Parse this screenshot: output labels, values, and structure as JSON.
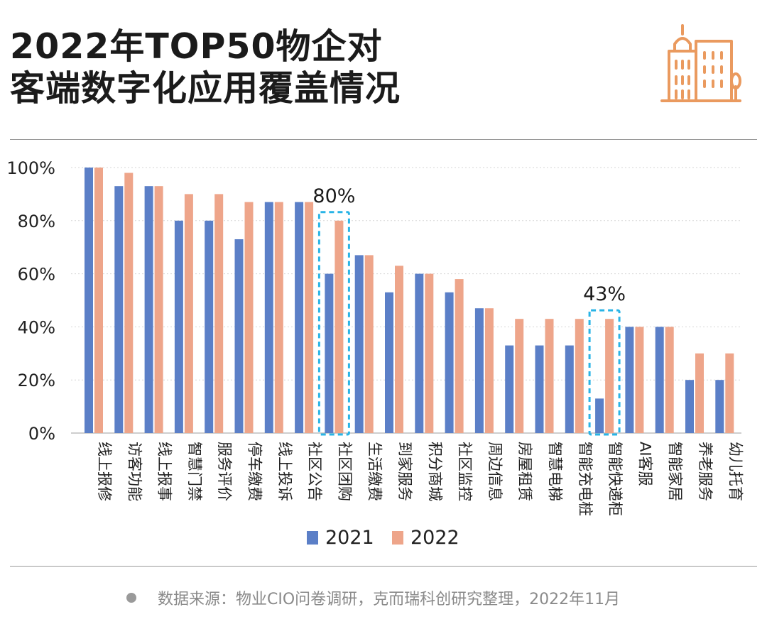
{
  "header": {
    "title_line1": "2022年TOP50物企对",
    "title_line2": "客端数字化应用覆盖情况",
    "logo_icon": "city-buildings-icon"
  },
  "footer": {
    "source": "数据来源：物业CIO问卷调研，克而瑞科创研究整理，2022年11月"
  },
  "chart_data": {
    "type": "bar",
    "title": "2022年TOP50物企对客端数字化应用覆盖情况",
    "xlabel": "",
    "ylabel": "",
    "ylim": [
      0,
      100
    ],
    "yticks": [
      "0%",
      "20%",
      "40%",
      "60%",
      "80%",
      "100%"
    ],
    "grid": true,
    "legend": "bottom",
    "categories": [
      "线上报修",
      "访客功能",
      "线上报事",
      "智慧门禁",
      "服务评价",
      "停车缴费",
      "线上投诉",
      "社区公告",
      "社区团购",
      "生活缴费",
      "到家服务",
      "积分商城",
      "社区监控",
      "周边信息",
      "房屋租赁",
      "智慧电梯",
      "智能充电桩",
      "智能快递柜",
      "AI客服",
      "智能家居",
      "养老服务",
      "幼儿托育"
    ],
    "series": [
      {
        "name": "2021",
        "color": "#5b7fc7",
        "values": [
          100,
          93,
          93,
          80,
          80,
          73,
          87,
          87,
          60,
          67,
          53,
          60,
          53,
          47,
          33,
          33,
          33,
          13,
          40,
          40,
          20,
          20
        ]
      },
      {
        "name": "2022",
        "color": "#eea58a",
        "values": [
          100,
          98,
          93,
          90,
          90,
          87,
          87,
          87,
          80,
          67,
          63,
          60,
          58,
          47,
          43,
          43,
          43,
          43,
          40,
          40,
          30,
          30
        ]
      }
    ],
    "annotations": [
      {
        "category": "社区团购",
        "text": "80%"
      },
      {
        "category": "智能快递柜",
        "text": "43%"
      }
    ]
  }
}
